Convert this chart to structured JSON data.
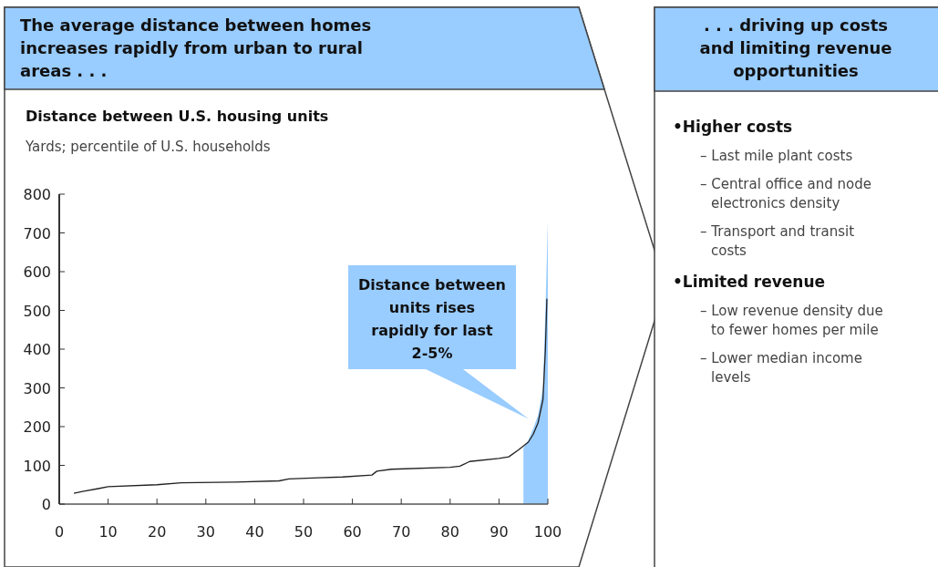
{
  "chart_data": {
    "type": "line",
    "title": "Distance between U.S. housing units",
    "subtitle": "Yards; percentile of U.S. households",
    "xlim": [
      0,
      100
    ],
    "xticks": [
      0,
      10,
      20,
      30,
      40,
      50,
      60,
      70,
      80,
      90,
      100
    ],
    "ylim": [
      0,
      800
    ],
    "yticks": [
      0,
      100,
      200,
      300,
      400,
      500,
      600,
      700,
      800
    ],
    "grid": false,
    "series": [
      {
        "type": "area",
        "color": "#99ccff",
        "x": [
          95,
          96,
          97,
          98,
          99,
          99.5,
          100
        ],
        "values": [
          145,
          165,
          195,
          230,
          300,
          500,
          730
        ]
      },
      {
        "type": "line",
        "color": "#222222",
        "x": [
          3,
          5,
          8,
          10,
          20,
          25,
          36,
          45,
          47,
          53,
          58,
          64,
          65,
          68,
          80,
          82,
          84,
          90,
          92,
          94,
          96,
          97,
          98,
          99,
          99.5,
          99.8
        ],
        "values": [
          28,
          33,
          40,
          45,
          50,
          55,
          57,
          60,
          65,
          68,
          70,
          75,
          85,
          90,
          95,
          98,
          110,
          118,
          122,
          140,
          160,
          180,
          210,
          270,
          400,
          530
        ]
      }
    ],
    "annotations": [
      "The average distance between homes increases rapidly from urban to rural areas . . .",
      "Distance between units rises rapidly for last 2-5%",
      ". . . driving up costs and limiting revenue opportunities",
      "•Higher costs",
      "– Last mile plant costs",
      "– Central office and node electronics density",
      "– Transport and transit costs",
      "•Limited revenue",
      "– Low revenue density due to fewer homes per mile",
      "– Lower median income levels"
    ]
  }
}
